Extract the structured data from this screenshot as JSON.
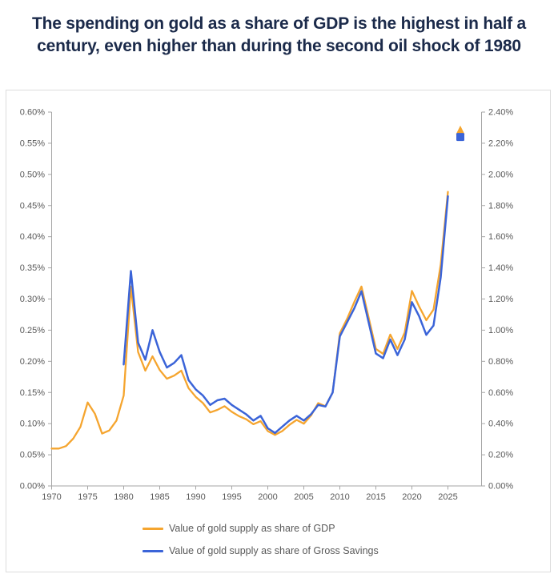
{
  "title": {
    "line1": "The spending on gold as a share of GDP is the highest in half a",
    "line2": "century, even higher than during the second oil shock of 1980"
  },
  "colors": {
    "gdp_line": "#F5A52F",
    "savings_line": "#3B64D8",
    "title_text": "#1B2A4A",
    "axis_text": "#595959",
    "axis_line": "#A6A6A6",
    "panel_border": "#DCDCDC",
    "background": "#FFFFFF"
  },
  "legend": [
    {
      "label": "Value of gold supply as share of GDP",
      "color_key": "gdp_line"
    },
    {
      "label": "Value of gold supply as share of Gross Savings",
      "color_key": "savings_line"
    }
  ],
  "chart_data": {
    "type": "line",
    "grid": false,
    "legend_position": "bottom",
    "left_axis": {
      "min": 0,
      "max": 0.6,
      "step": 0.05,
      "unit": "%",
      "ticks": [
        "0.00%",
        "0.05%",
        "0.10%",
        "0.15%",
        "0.20%",
        "0.25%",
        "0.30%",
        "0.35%",
        "0.40%",
        "0.45%",
        "0.50%",
        "0.55%",
        "0.60%"
      ]
    },
    "right_axis": {
      "min": 0,
      "max": 2.4,
      "step": 0.2,
      "unit": "%",
      "ticks": [
        "0.00%",
        "0.20%",
        "0.40%",
        "0.60%",
        "0.80%",
        "1.00%",
        "1.20%",
        "1.40%",
        "1.60%",
        "1.80%",
        "2.00%",
        "2.20%",
        "2.40%"
      ]
    },
    "x_axis": {
      "min": 1970,
      "max": 2030,
      "ticks": [
        "1970",
        "1975",
        "1980",
        "1985",
        "1990",
        "1995",
        "2000",
        "2005",
        "2010",
        "2015",
        "2020",
        "2025"
      ]
    },
    "series": [
      {
        "name": "Value of gold supply as share of GDP",
        "axis": "left",
        "color_key": "gdp_line",
        "width": 2.3,
        "x_start": 1970,
        "values": [
          0.06,
          0.06,
          0.064,
          0.076,
          0.095,
          0.134,
          0.116,
          0.084,
          0.089,
          0.105,
          0.145,
          0.32,
          0.215,
          0.185,
          0.208,
          0.186,
          0.172,
          0.177,
          0.185,
          0.157,
          0.143,
          0.133,
          0.118,
          0.122,
          0.128,
          0.119,
          0.112,
          0.107,
          0.099,
          0.104,
          0.088,
          0.082,
          0.088,
          0.098,
          0.106,
          0.1,
          0.113,
          0.133,
          0.128,
          0.15,
          0.245,
          0.268,
          0.295,
          0.32,
          0.27,
          0.22,
          0.212,
          0.243,
          0.22,
          0.246,
          0.313,
          0.288,
          0.266,
          0.283,
          0.355,
          0.472
        ]
      },
      {
        "name": "Value of gold supply as share of Gross Savings",
        "axis": "right",
        "color_key": "savings_line",
        "width": 2.5,
        "x_start": 1980,
        "values": [
          0.78,
          1.38,
          0.92,
          0.81,
          1.0,
          0.86,
          0.76,
          0.79,
          0.84,
          0.68,
          0.62,
          0.58,
          0.52,
          0.55,
          0.56,
          0.52,
          0.49,
          0.46,
          0.42,
          0.45,
          0.37,
          0.34,
          0.38,
          0.42,
          0.45,
          0.42,
          0.46,
          0.52,
          0.51,
          0.6,
          0.96,
          1.05,
          1.14,
          1.25,
          1.05,
          0.85,
          0.82,
          0.94,
          0.84,
          0.94,
          1.18,
          1.09,
          0.97,
          1.03,
          1.34,
          1.86
        ]
      }
    ],
    "markers": [
      {
        "name": "gdp-latest-point",
        "shape": "triangle-up",
        "axis": "left",
        "value_pct": 0.57,
        "x_year": 2026.7,
        "color_key": "gdp_line"
      },
      {
        "name": "gross-savings-latest-point",
        "shape": "square",
        "axis": "right",
        "value_pct": 2.24,
        "x_year": 2026.7,
        "color_key": "savings_line"
      }
    ]
  }
}
